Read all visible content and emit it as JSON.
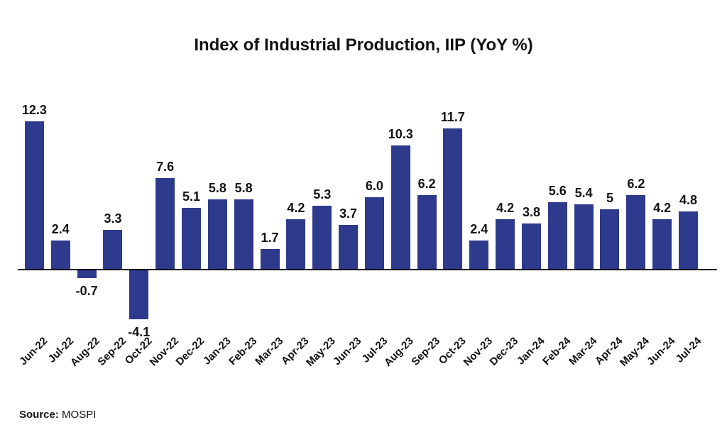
{
  "title": "Index of Industrial Production, IIP (YoY %)",
  "source": {
    "label": "Source:",
    "value": "MOSPI"
  },
  "chart_data": {
    "type": "bar",
    "title": "Index of Industrial Production, IIP (YoY %)",
    "categories": [
      "Jun-22",
      "Jul-22",
      "Aug-22",
      "Sep-22",
      "Oct-22",
      "Nov-22",
      "Dec-22",
      "Jan-23",
      "Feb-23",
      "Mar-23",
      "Apr-23",
      "May-23",
      "Jun-23",
      "Jul-23",
      "Aug-23",
      "Sep-23",
      "Oct-23",
      "Nov-23",
      "Dec-23",
      "Jan-24",
      "Feb-24",
      "Mar-24",
      "Apr-24",
      "May-24",
      "Jun-24",
      "Jul-24"
    ],
    "values": [
      12.3,
      2.4,
      -0.7,
      3.3,
      -4.1,
      7.6,
      5.1,
      5.8,
      5.8,
      1.7,
      4.2,
      5.3,
      3.7,
      6.0,
      10.3,
      6.2,
      11.7,
      2.4,
      4.2,
      3.8,
      5.6,
      5.4,
      5,
      6.2,
      4.2,
      4.8
    ],
    "value_labels": [
      "12.3",
      "2.4",
      "-0.7",
      "3.3",
      "-4.1",
      "7.6",
      "5.1",
      "5.8",
      "5.8",
      "1.7",
      "4.2",
      "5.3",
      "3.7",
      "6.0",
      "10.3",
      "6.2",
      "11.7",
      "2.4",
      "4.2",
      "3.8",
      "5.6",
      "5.4",
      "5",
      "6.2",
      "4.2",
      "4.8"
    ],
    "xlabel": "",
    "ylabel": "",
    "ylim": [
      -5,
      13
    ],
    "grid": false,
    "legend": false,
    "bar_color": "#2E3A8C",
    "axis_color": "#000000",
    "label_color": "#111111"
  }
}
